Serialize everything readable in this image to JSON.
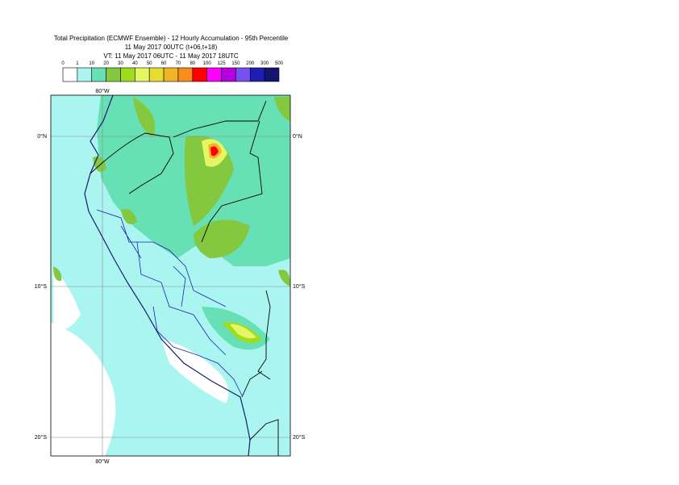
{
  "header": {
    "title": "Total Precipitation (ECMWF Ensemble) - 12 Hourly Accumulation - 95th Percentile",
    "run": "11 May 2017 00UTC (t+06,t+18)",
    "valid": "VT: 11 May 2017 06UTC - 11 May 2017 18UTC"
  },
  "legend": {
    "labels": [
      0,
      1,
      10,
      20,
      30,
      40,
      50,
      60,
      70,
      80,
      100,
      125,
      150,
      200,
      300,
      500
    ],
    "colors": [
      "#ffffff",
      "#aaf5f0",
      "#66e0b4",
      "#84c840",
      "#a0dc1e",
      "#e6f564",
      "#e6dc32",
      "#f0b428",
      "#fa8c1e",
      "#ff0000",
      "#ff00ff",
      "#b400dc",
      "#7850f0",
      "#1e1eb4",
      "#14146e"
    ]
  },
  "map": {
    "lon_top": "80°W",
    "lon_bottom": "80°W",
    "lat_left": [
      "0°N",
      "10°S",
      "20°S"
    ],
    "lat_right": [
      "0°N",
      "10°S",
      "20°S"
    ]
  }
}
